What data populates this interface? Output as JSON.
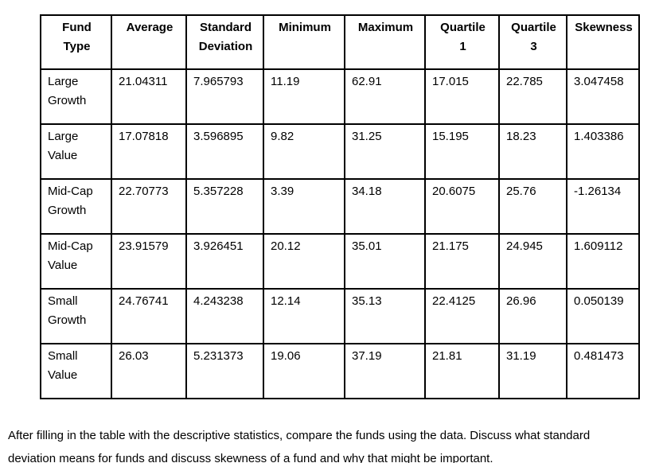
{
  "page": {
    "background_color": "#ffffff",
    "text_color": "#000000",
    "table_border_color": "#000000"
  },
  "table": {
    "headers": [
      "Fund\nType",
      "Average",
      "Standard\nDeviation",
      "Minimum",
      "Maximum",
      "Quartile\n1",
      "Quartile\n3",
      "Skewness"
    ],
    "rows": [
      {
        "fund": "Large\nGrowth",
        "values": [
          "21.04311",
          "7.965793",
          "11.19",
          "62.91",
          "17.015",
          "22.785",
          "3.047458"
        ]
      },
      {
        "fund": "Large\nValue",
        "values": [
          "17.07818",
          "3.596895",
          "9.82",
          "31.25",
          "15.195",
          "18.23",
          "1.403386"
        ]
      },
      {
        "fund": "Mid-Cap\nGrowth",
        "values": [
          "22.70773",
          "5.357228",
          "3.39",
          "34.18",
          "20.6075",
          "25.76",
          "-1.26134"
        ]
      },
      {
        "fund": "Mid-Cap\nValue",
        "values": [
          "23.91579",
          "3.926451",
          "20.12",
          "35.01",
          "21.175",
          "24.945",
          "1.609112"
        ]
      },
      {
        "fund": "Small\nGrowth",
        "values": [
          "24.76741",
          "4.243238",
          "12.14",
          "35.13",
          "22.4125",
          "26.96",
          "0.050139"
        ]
      },
      {
        "fund": "Small\nValue",
        "values": [
          "26.03",
          "5.231373",
          "19.06",
          "37.19",
          "21.81",
          "31.19",
          "0.481473"
        ]
      }
    ]
  },
  "paragraph": "After filling in the table with the descriptive statistics, compare the funds using the data. Discuss what standard deviation means for funds and discuss skewness of a fund and why that might be important."
}
